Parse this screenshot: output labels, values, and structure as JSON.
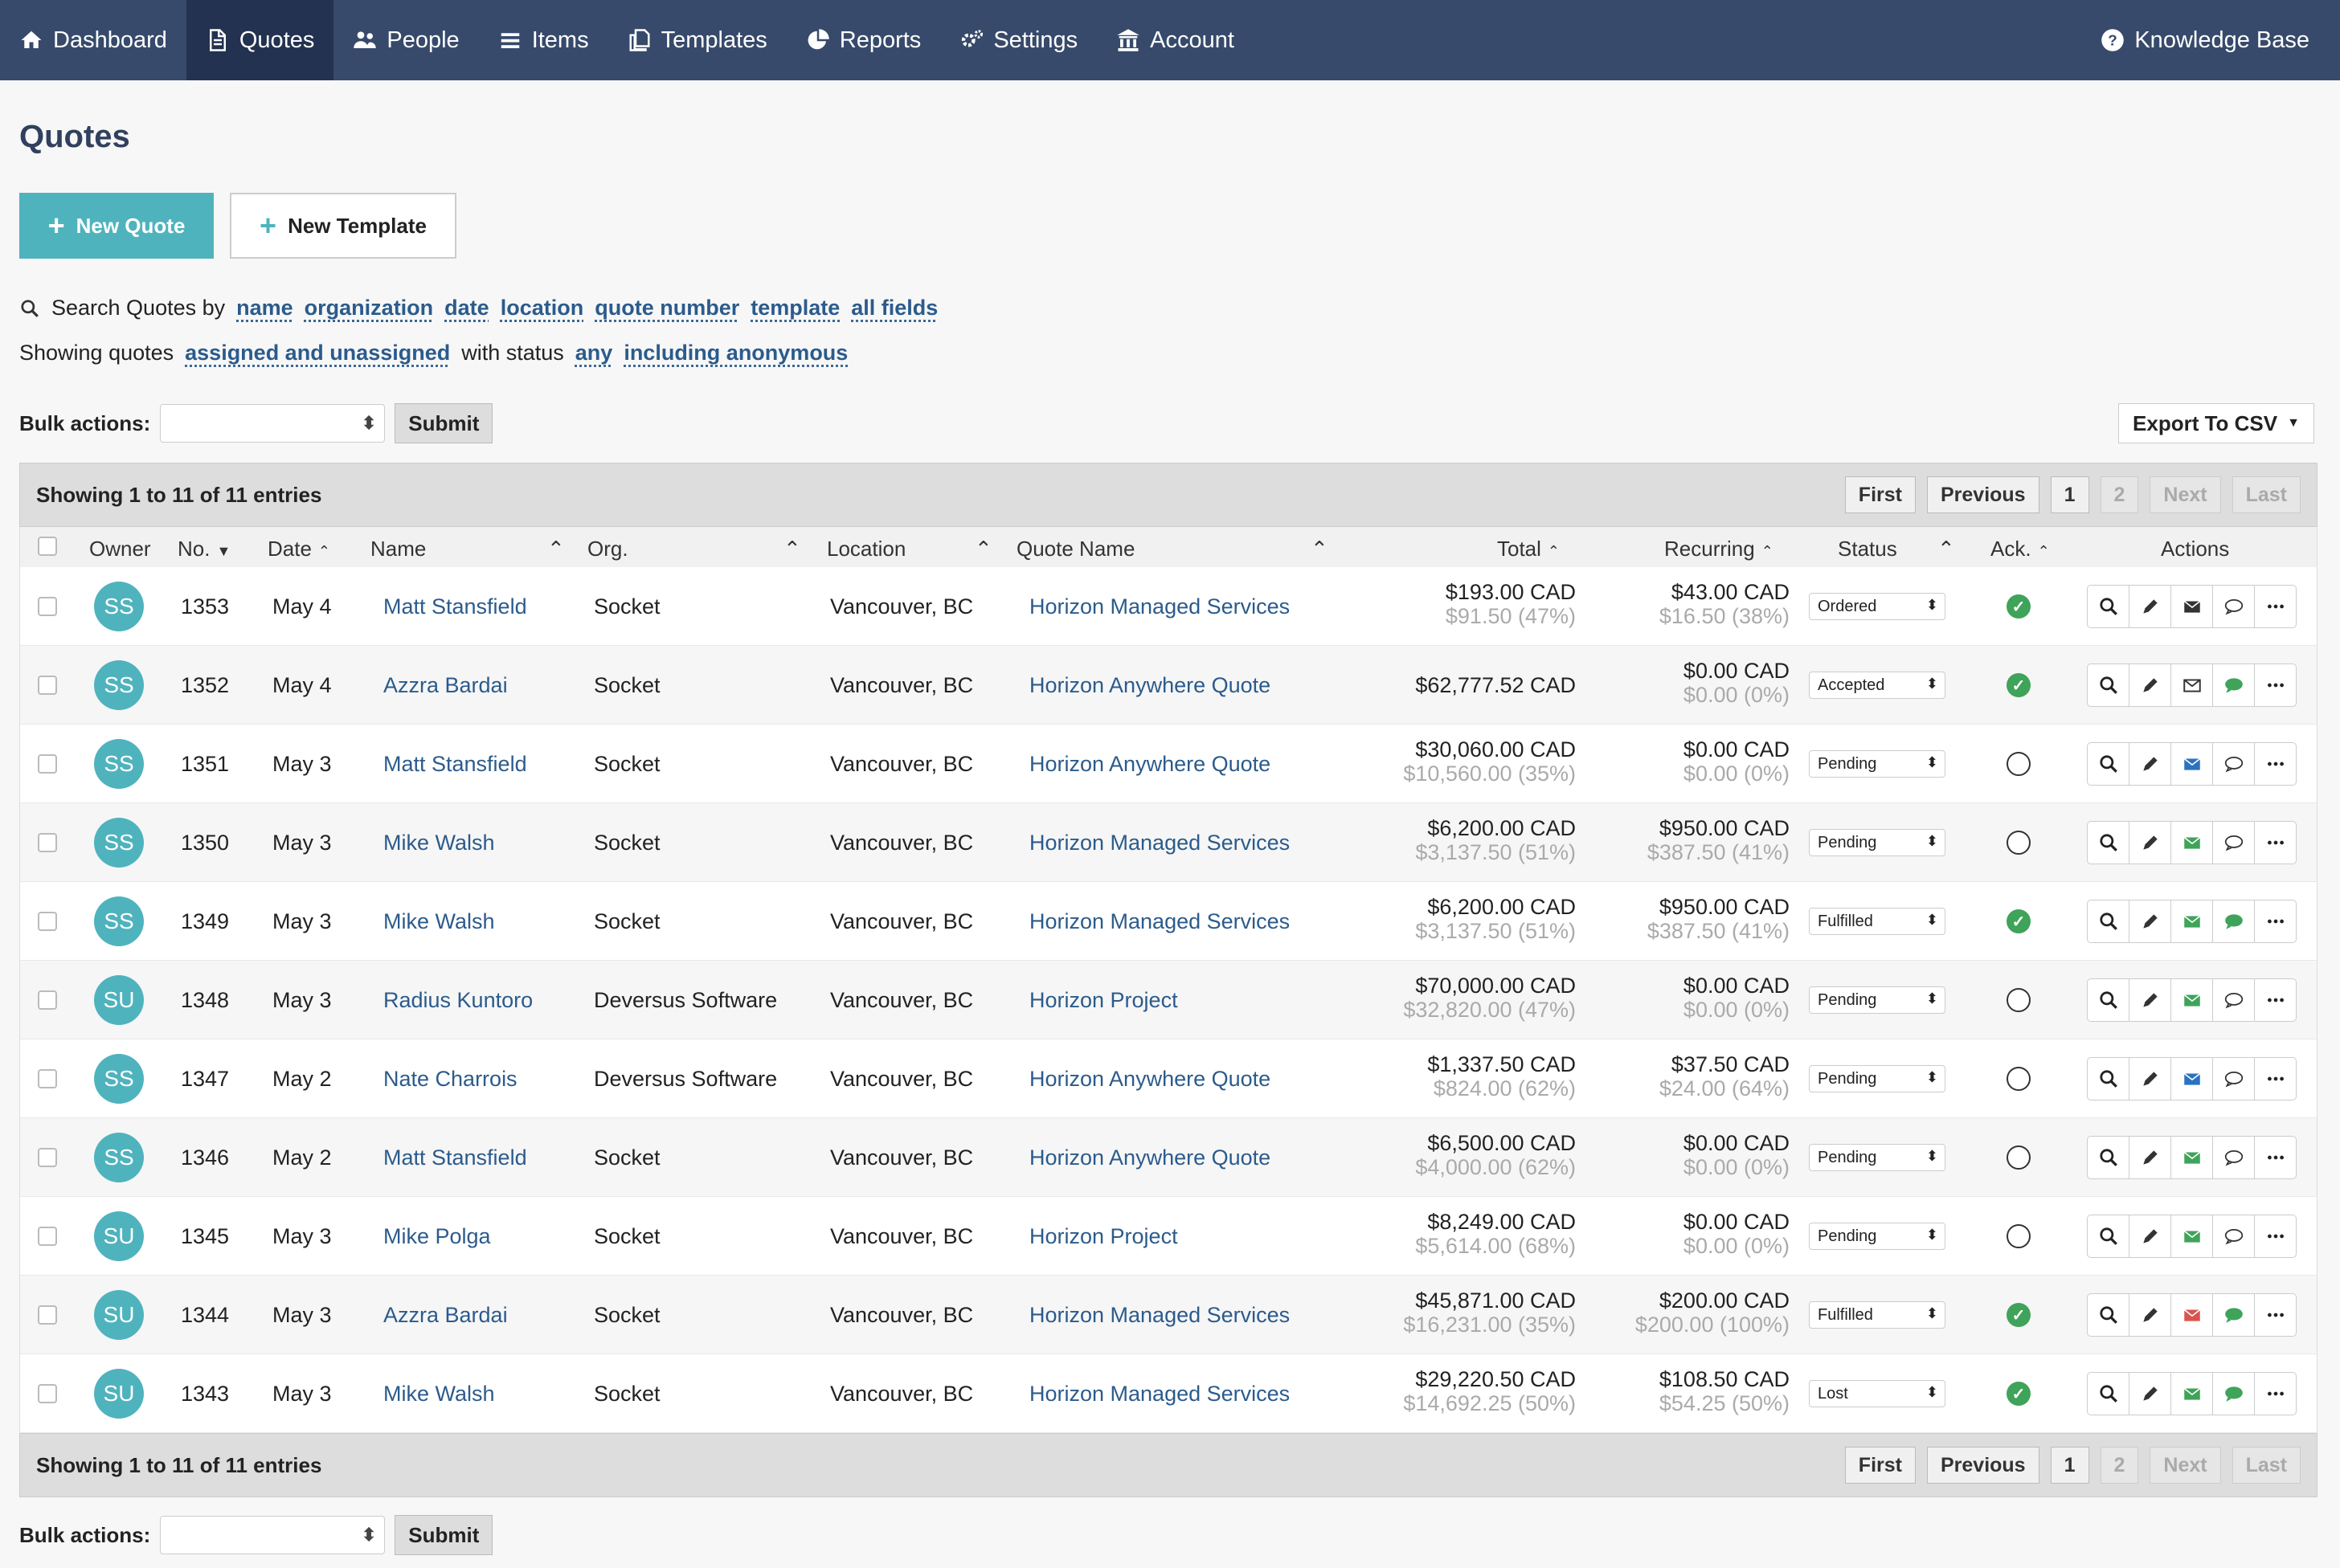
{
  "nav": {
    "items": [
      {
        "label": "Dashboard",
        "icon": "home-icon"
      },
      {
        "label": "Quotes",
        "icon": "document-icon",
        "active": true
      },
      {
        "label": "People",
        "icon": "people-icon"
      },
      {
        "label": "Items",
        "icon": "list-icon"
      },
      {
        "label": "Templates",
        "icon": "copy-icon"
      },
      {
        "label": "Reports",
        "icon": "pie-chart-icon"
      },
      {
        "label": "Settings",
        "icon": "gears-icon"
      },
      {
        "label": "Account",
        "icon": "bank-icon"
      }
    ],
    "knowledge_base": "Knowledge Base"
  },
  "page_title": "Quotes",
  "buttons": {
    "new_quote": "New Quote",
    "new_template": "New Template"
  },
  "search": {
    "prefix": "Search Quotes by",
    "fields": [
      "name",
      "organization",
      "date",
      "location",
      "quote number",
      "template",
      "all fields"
    ]
  },
  "showing": {
    "prefix": "Showing quotes",
    "assigned": "assigned and unassigned",
    "with_status": "with status",
    "status": "any",
    "anon": "including anonymous"
  },
  "bulk": {
    "label": "Bulk actions:",
    "submit": "Submit"
  },
  "export": "Export To CSV",
  "entries": "Showing 1 to 11 of 11 entries",
  "pager": {
    "first": "First",
    "previous": "Previous",
    "pages": [
      "1",
      "2"
    ],
    "next": "Next",
    "last": "Last"
  },
  "columns": {
    "owner": "Owner",
    "no": "No.",
    "date": "Date",
    "name": "Name",
    "org": "Org.",
    "location": "Location",
    "quote_name": "Quote Name",
    "total": "Total",
    "recurring": "Recurring",
    "status": "Status",
    "ack": "Ack.",
    "actions": "Actions"
  },
  "rows": [
    {
      "owner": "SS",
      "no": "1353",
      "date": "May 4",
      "name": "Matt Stansfield",
      "org": "Socket",
      "location": "Vancouver, BC",
      "quote_name": "Horizon Managed Services",
      "total": "$193.00 CAD",
      "total_sub": "$91.50 (47%)",
      "rec": "$43.00 CAD",
      "rec_sub": "$16.50 (38%)",
      "status": "Ordered",
      "ack": true,
      "mail": "dark",
      "chat": "outline"
    },
    {
      "owner": "SS",
      "no": "1352",
      "date": "May 4",
      "name": "Azzra Bardai",
      "org": "Socket",
      "location": "Vancouver, BC",
      "quote_name": "Horizon Anywhere Quote",
      "total": "$62,777.52 CAD",
      "total_sub": "",
      "rec": "$0.00 CAD",
      "rec_sub": "$0.00 (0%)",
      "status": "Accepted",
      "ack": true,
      "mail": "outline",
      "chat": "green"
    },
    {
      "owner": "SS",
      "no": "1351",
      "date": "May 3",
      "name": "Matt Stansfield",
      "org": "Socket",
      "location": "Vancouver, BC",
      "quote_name": "Horizon Anywhere Quote",
      "total": "$30,060.00 CAD",
      "total_sub": "$10,560.00 (35%)",
      "rec": "$0.00 CAD",
      "rec_sub": "$0.00 (0%)",
      "status": "Pending",
      "ack": false,
      "mail": "blue",
      "chat": "outline"
    },
    {
      "owner": "SS",
      "no": "1350",
      "date": "May 3",
      "name": "Mike Walsh",
      "org": "Socket",
      "location": "Vancouver, BC",
      "quote_name": "Horizon Managed Services",
      "total": "$6,200.00 CAD",
      "total_sub": "$3,137.50 (51%)",
      "rec": "$950.00 CAD",
      "rec_sub": "$387.50 (41%)",
      "status": "Pending",
      "ack": false,
      "mail": "green",
      "chat": "outline"
    },
    {
      "owner": "SS",
      "no": "1349",
      "date": "May 3",
      "name": "Mike Walsh",
      "org": "Socket",
      "location": "Vancouver, BC",
      "quote_name": "Horizon Managed Services",
      "total": "$6,200.00 CAD",
      "total_sub": "$3,137.50 (51%)",
      "rec": "$950.00 CAD",
      "rec_sub": "$387.50 (41%)",
      "status": "Fulfilled",
      "ack": true,
      "mail": "green",
      "chat": "green"
    },
    {
      "owner": "SU",
      "no": "1348",
      "date": "May 3",
      "name": "Radius Kuntoro",
      "org": "Deversus Software",
      "location": "Vancouver, BC",
      "quote_name": "Horizon Project",
      "total": "$70,000.00 CAD",
      "total_sub": "$32,820.00 (47%)",
      "rec": "$0.00 CAD",
      "rec_sub": "$0.00 (0%)",
      "status": "Pending",
      "ack": false,
      "mail": "green",
      "chat": "outline"
    },
    {
      "owner": "SS",
      "no": "1347",
      "date": "May 2",
      "name": "Nate Charrois",
      "org": "Deversus Software",
      "location": "Vancouver, BC",
      "quote_name": "Horizon Anywhere Quote",
      "total": "$1,337.50 CAD",
      "total_sub": "$824.00 (62%)",
      "rec": "$37.50 CAD",
      "rec_sub": "$24.00 (64%)",
      "status": "Pending",
      "ack": false,
      "mail": "blue",
      "chat": "outline"
    },
    {
      "owner": "SS",
      "no": "1346",
      "date": "May 2",
      "name": "Matt Stansfield",
      "org": "Socket",
      "location": "Vancouver, BC",
      "quote_name": "Horizon Anywhere Quote",
      "total": "$6,500.00 CAD",
      "total_sub": "$4,000.00 (62%)",
      "rec": "$0.00 CAD",
      "rec_sub": "$0.00 (0%)",
      "status": "Pending",
      "ack": false,
      "mail": "green",
      "chat": "outline"
    },
    {
      "owner": "SU",
      "no": "1345",
      "date": "May 3",
      "name": "Mike Polga",
      "org": "Socket",
      "location": "Vancouver, BC",
      "quote_name": "Horizon Project",
      "total": "$8,249.00 CAD",
      "total_sub": "$5,614.00 (68%)",
      "rec": "$0.00 CAD",
      "rec_sub": "$0.00 (0%)",
      "status": "Pending",
      "ack": false,
      "mail": "green",
      "chat": "outline"
    },
    {
      "owner": "SU",
      "no": "1344",
      "date": "May 3",
      "name": "Azzra Bardai",
      "org": "Socket",
      "location": "Vancouver, BC",
      "quote_name": "Horizon Managed Services",
      "total": "$45,871.00 CAD",
      "total_sub": "$16,231.00 (35%)",
      "rec": "$200.00 CAD",
      "rec_sub": "$200.00 (100%)",
      "status": "Fulfilled",
      "ack": true,
      "mail": "red",
      "chat": "green"
    },
    {
      "owner": "SU",
      "no": "1343",
      "date": "May 3",
      "name": "Mike Walsh",
      "org": "Socket",
      "location": "Vancouver, BC",
      "quote_name": "Horizon Managed Services",
      "total": "$29,220.50 CAD",
      "total_sub": "$14,692.25 (50%)",
      "rec": "$108.50 CAD",
      "rec_sub": "$54.25 (50%)",
      "status": "Lost",
      "ack": true,
      "mail": "green",
      "chat": "green"
    }
  ],
  "colors": {
    "nav": "#374a6b",
    "accent": "#4fb3bd",
    "link": "#2b5b8c",
    "ack": "#3fa35a",
    "mail_blue": "#2a72c2",
    "mail_green": "#3fa35a",
    "mail_red": "#d9534f"
  }
}
